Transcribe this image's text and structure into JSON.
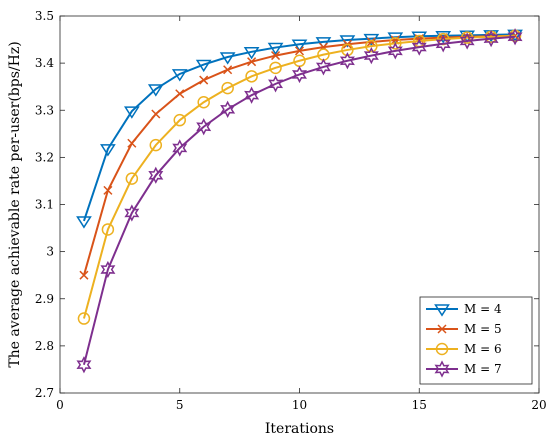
{
  "chart_data": {
    "type": "line",
    "xlabel": "Iterations",
    "ylabel": "The average achievable rate per-user(bps/Hz)",
    "xlim": [
      0,
      20
    ],
    "ylim": [
      2.7,
      3.5
    ],
    "xticks": [
      0,
      5,
      10,
      15,
      20
    ],
    "yticks": [
      2.7,
      2.8,
      2.9,
      3.0,
      3.1,
      3.2,
      3.3,
      3.4,
      3.5
    ],
    "xtick_labels": [
      "0",
      "5",
      "10",
      "15",
      "20"
    ],
    "ytick_labels": [
      "2.7",
      "2.8",
      "2.9",
      "3",
      "3.1",
      "3.2",
      "3.3",
      "3.4",
      "3.5"
    ],
    "grid": false,
    "legend_position": "bottom-right",
    "x": [
      1,
      2,
      3,
      4,
      5,
      6,
      7,
      8,
      9,
      10,
      11,
      12,
      13,
      14,
      15,
      16,
      17,
      18,
      19
    ],
    "series": [
      {
        "name": "M = 4",
        "color": "#0072BD",
        "marker": "triangle-down",
        "values": [
          3.065,
          3.218,
          3.298,
          3.345,
          3.377,
          3.397,
          3.413,
          3.424,
          3.433,
          3.44,
          3.445,
          3.449,
          3.452,
          3.455,
          3.457,
          3.458,
          3.459,
          3.46,
          3.461
        ]
      },
      {
        "name": "M = 5",
        "color": "#D95319",
        "marker": "x",
        "values": [
          2.95,
          3.13,
          3.23,
          3.292,
          3.335,
          3.364,
          3.386,
          3.403,
          3.416,
          3.426,
          3.434,
          3.44,
          3.445,
          3.449,
          3.452,
          3.454,
          3.456,
          3.457,
          3.458
        ]
      },
      {
        "name": "M = 6",
        "color": "#EDB120",
        "marker": "circle",
        "values": [
          2.858,
          3.047,
          3.155,
          3.226,
          3.279,
          3.317,
          3.347,
          3.372,
          3.39,
          3.405,
          3.418,
          3.428,
          3.436,
          3.442,
          3.447,
          3.451,
          3.454,
          3.456,
          3.458
        ]
      },
      {
        "name": "M = 7",
        "color": "#7E2F8E",
        "marker": "hexagram",
        "values": [
          2.76,
          2.962,
          3.082,
          3.162,
          3.22,
          3.265,
          3.302,
          3.332,
          3.356,
          3.376,
          3.392,
          3.405,
          3.416,
          3.426,
          3.434,
          3.441,
          3.447,
          3.452,
          3.456
        ]
      }
    ]
  }
}
